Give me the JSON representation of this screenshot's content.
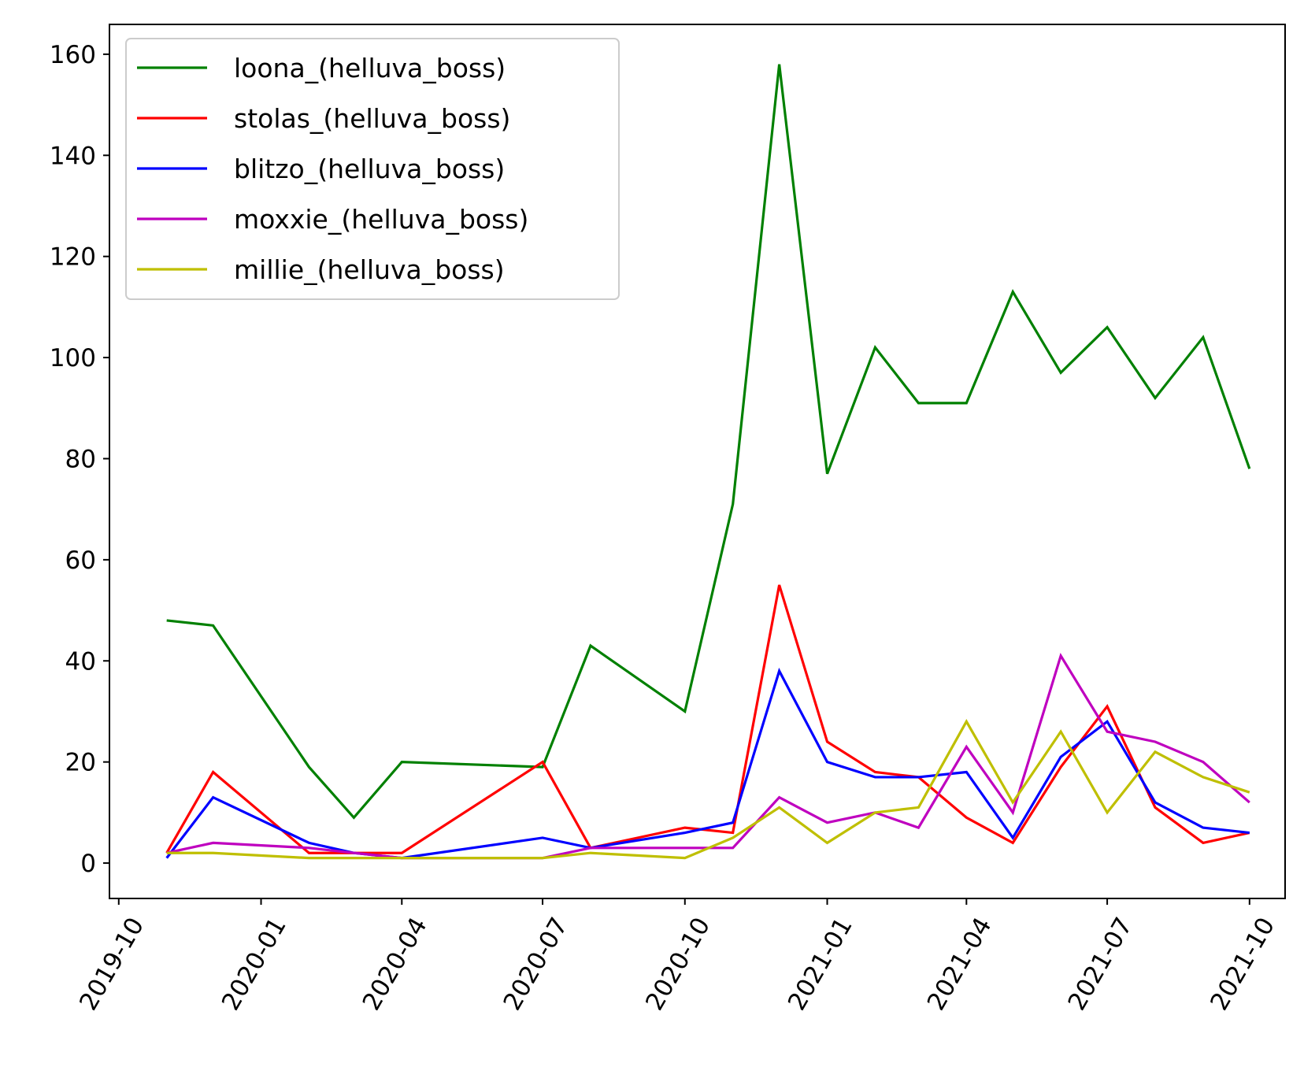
{
  "chart_data": {
    "type": "line",
    "title": "",
    "xlabel": "",
    "ylabel": "",
    "x": [
      "2019-11",
      "2019-12",
      "2020-02",
      "2020-03",
      "2020-04",
      "2020-07",
      "2020-08",
      "2020-10",
      "2020-11",
      "2020-12",
      "2021-01",
      "2021-02",
      "2021-03",
      "2021-04",
      "2021-05",
      "2021-06",
      "2021-07",
      "2021-08",
      "2021-09",
      "2021-10"
    ],
    "series": [
      {
        "name": "loona_(helluva_boss)",
        "color": "#008000",
        "values": [
          48,
          47,
          19,
          9,
          20,
          19,
          43,
          30,
          71,
          158,
          77,
          102,
          91,
          91,
          113,
          97,
          106,
          92,
          104,
          78
        ]
      },
      {
        "name": "stolas_(helluva_boss)",
        "color": "#ff0000",
        "values": [
          2,
          18,
          2,
          2,
          2,
          20,
          3,
          7,
          6,
          55,
          24,
          18,
          17,
          9,
          4,
          19,
          31,
          11,
          4,
          6
        ]
      },
      {
        "name": "blitzo_(helluva_boss)",
        "color": "#0000ff",
        "values": [
          1,
          13,
          4,
          2,
          1,
          5,
          3,
          6,
          8,
          38,
          20,
          17,
          17,
          18,
          5,
          21,
          28,
          12,
          7,
          6
        ]
      },
      {
        "name": "moxxie_(helluva_boss)",
        "color": "#bf00bf",
        "values": [
          2,
          4,
          3,
          2,
          1,
          1,
          3,
          3,
          3,
          13,
          8,
          10,
          7,
          23,
          10,
          41,
          26,
          24,
          20,
          12
        ]
      },
      {
        "name": "millie_(helluva_boss)",
        "color": "#bfbf00",
        "values": [
          2,
          2,
          1,
          1,
          1,
          1,
          2,
          1,
          5,
          11,
          4,
          10,
          11,
          28,
          12,
          26,
          10,
          22,
          17,
          14
        ]
      }
    ],
    "xlim": [
      "2019-09-25",
      "2021-10-24"
    ],
    "ylim": [
      -7.0,
      165.9
    ],
    "xticks": [
      "2019-10",
      "2020-01",
      "2020-04",
      "2020-07",
      "2020-10",
      "2021-01",
      "2021-04",
      "2021-07",
      "2021-10"
    ],
    "yticks": [
      0,
      20,
      40,
      60,
      80,
      100,
      120,
      140,
      160
    ],
    "grid": false,
    "legend": "upper left"
  }
}
